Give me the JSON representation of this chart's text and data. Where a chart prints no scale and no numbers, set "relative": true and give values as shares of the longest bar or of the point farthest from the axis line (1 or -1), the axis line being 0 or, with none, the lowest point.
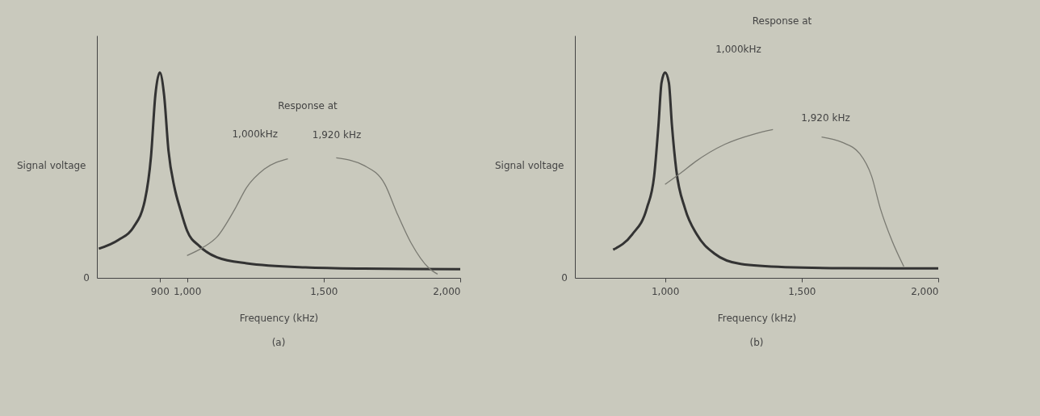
{
  "chart_data": [
    {
      "type": "line",
      "title": "(a)",
      "xlabel": "Frequency (kHz)",
      "ylabel": "Signal voltage",
      "relative": true,
      "xlim": [
        670,
        2000
      ],
      "xticks": [
        900,
        {
          "value": 1000,
          "label": "1,000"
        },
        {
          "value": 1500,
          "label": "1,500"
        },
        {
          "value": 2000,
          "label": "2,000"
        }
      ],
      "annotations": [
        "0",
        "Response at",
        "1,000kHz",
        "1,920 kHz"
      ],
      "series": [
        {
          "color": "#333333",
          "x": [
            677,
            749,
            803,
            846,
            868,
            884,
            900,
            916,
            932,
            954,
            975,
            1000,
            1046,
            1110,
            1218,
            1433,
            1648,
            2000
          ],
          "values": [
            0.142,
            0.185,
            0.245,
            0.38,
            0.59,
            0.89,
            1,
            0.89,
            0.62,
            0.44,
            0.335,
            0.23,
            0.154,
            0.1,
            0.071,
            0.051,
            0.045,
            0.042
          ]
        },
        {
          "color": "#7a7a72",
          "x": [
            1000,
            1057,
            1110,
            1175,
            1218,
            1283,
            1369,
            1455,
            1546,
            1648,
            1724,
            1767,
            1820,
            1885,
            1917
          ],
          "values": [
            0.109,
            0.147,
            0.2,
            0.335,
            0.44,
            0.53,
            0.58,
            null,
            0.585,
            0.547,
            0.456,
            0.32,
            0.17,
            0.048,
            0.018
          ]
        }
      ]
    },
    {
      "type": "line",
      "title": "(b)",
      "xlabel": "Frequency (kHz)",
      "ylabel": "Signal voltage",
      "relative": true,
      "xlim": [
        670,
        2000
      ],
      "xticks": [
        {
          "value": 1000,
          "label": "1,000"
        },
        {
          "value": 1500,
          "label": "1,500"
        },
        {
          "value": 2000,
          "label": "2,000"
        }
      ],
      "annotations": [
        "0",
        "Response at",
        "1,000kHz",
        "1,920 kHz"
      ],
      "series": [
        {
          "color": "#333333",
          "x": [
            810,
            880,
            933,
            960,
            976,
            987,
            1000,
            1014,
            1025,
            1041,
            1073,
            1116,
            1181,
            1277,
            1439,
            1654,
            2000
          ],
          "values": [
            0.137,
            0.212,
            0.338,
            0.495,
            0.746,
            0.95,
            1,
            0.95,
            0.746,
            0.526,
            0.338,
            0.212,
            0.118,
            0.0675,
            0.052,
            0.047,
            0.046
          ]
        },
        {
          "color": "#7a7a72",
          "x": [
            1000,
            1057,
            1110,
            1218,
            1325,
            1395,
            1487,
            1573,
            1648,
            1713,
            1756,
            1788,
            1831,
            1874
          ],
          "values": [
            0.455,
            0.51,
            0.565,
            0.65,
            0.7,
            0.722,
            null,
            0.686,
            0.66,
            0.604,
            0.495,
            0.338,
            0.18,
            0.055
          ]
        }
      ]
    }
  ]
}
